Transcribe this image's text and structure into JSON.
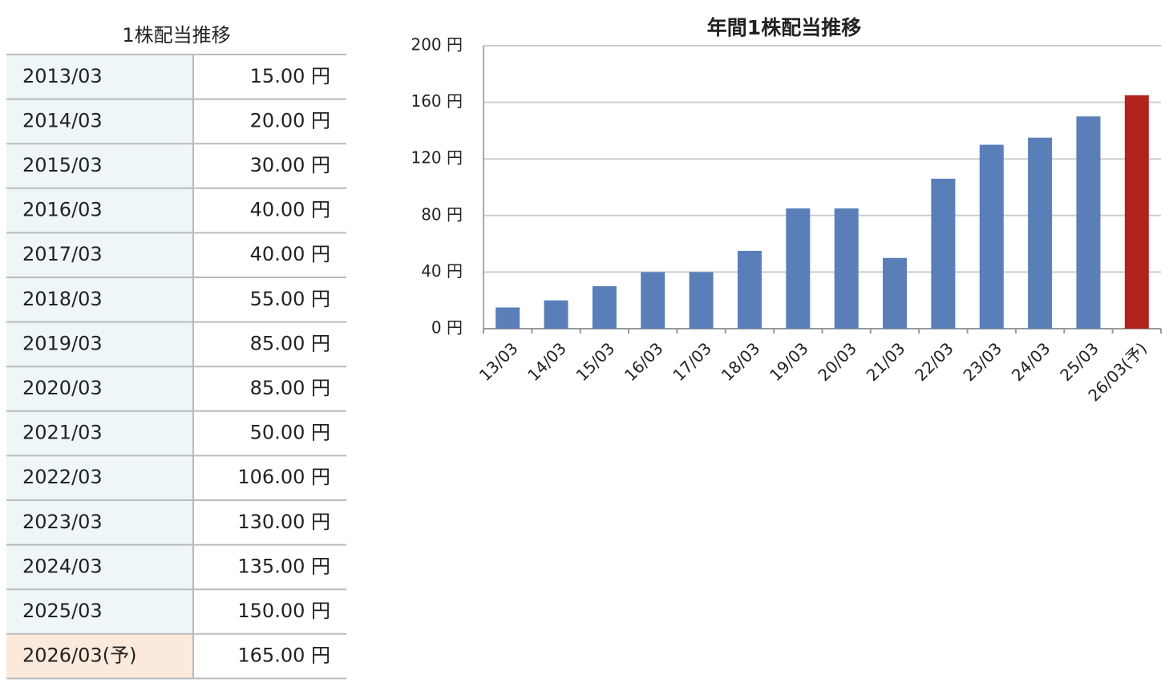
{
  "table": {
    "title": "1株配当推移",
    "rows": [
      [
        "2013/03",
        "15.00 円"
      ],
      [
        "2014/03",
        "20.00 円"
      ],
      [
        "2015/03",
        "30.00 円"
      ],
      [
        "2016/03",
        "40.00 円"
      ],
      [
        "2017/03",
        "40.00 円"
      ],
      [
        "2018/03",
        "55.00 円"
      ],
      [
        "2019/03",
        "85.00 円"
      ],
      [
        "2020/03",
        "85.00 円"
      ],
      [
        "2021/03",
        "50.00 円"
      ],
      [
        "2022/03",
        "106.00 円"
      ],
      [
        "2023/03",
        "130.00 円"
      ],
      [
        "2024/03",
        "135.00 円"
      ],
      [
        "2025/03",
        "150.00 円"
      ],
      [
        "2026/03(予)",
        "165.00 円"
      ]
    ]
  },
  "chart_data": {
    "type": "bar",
    "title": "年間1株配当推移",
    "categories": [
      "13/03",
      "14/03",
      "15/03",
      "16/03",
      "17/03",
      "18/03",
      "19/03",
      "20/03",
      "21/03",
      "22/03",
      "23/03",
      "24/03",
      "25/03",
      "26/03(予)"
    ],
    "values": [
      15,
      20,
      30,
      40,
      40,
      55,
      85,
      85,
      50,
      106,
      130,
      135,
      150,
      165
    ],
    "colors": [
      "#5a7fb8",
      "#5a7fb8",
      "#5a7fb8",
      "#5a7fb8",
      "#5a7fb8",
      "#5a7fb8",
      "#5a7fb8",
      "#5a7fb8",
      "#5a7fb8",
      "#5a7fb8",
      "#5a7fb8",
      "#5a7fb8",
      "#5a7fb8",
      "#b0231c"
    ],
    "ylim": [
      0,
      200
    ],
    "yticks": [
      {
        "value": 0,
        "label": "0 円"
      },
      {
        "value": 40,
        "label": "40 円"
      },
      {
        "value": 80,
        "label": "80 円"
      },
      {
        "value": 120,
        "label": "120 円"
      },
      {
        "value": 160,
        "label": "160 円"
      },
      {
        "value": 200,
        "label": "200 円"
      }
    ],
    "grid": true
  }
}
